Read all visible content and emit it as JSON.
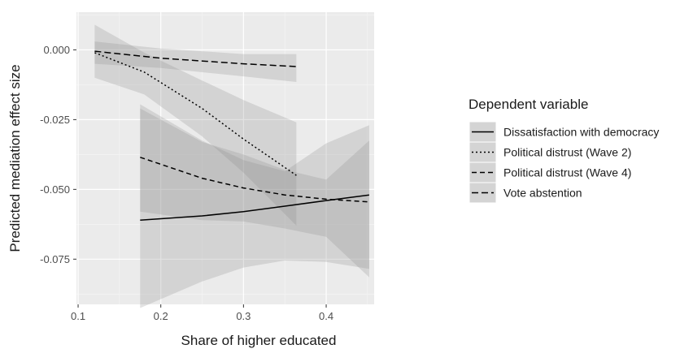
{
  "chart_data": {
    "type": "line",
    "title": "",
    "xlabel": "Share of higher educated",
    "ylabel": "Predicted mediation effect size",
    "xlim": [
      0.098,
      0.458
    ],
    "ylim": [
      -0.0912,
      0.0135
    ],
    "xticks": [
      0.1,
      0.2,
      0.3,
      0.4
    ],
    "xtick_labels": [
      "0.1",
      "0.2",
      "0.3",
      "0.4"
    ],
    "yticks": [
      0.0,
      -0.025,
      -0.05,
      -0.075
    ],
    "ytick_labels": [
      "0.000",
      "-0.025",
      "-0.050",
      "-0.075"
    ],
    "grid": true,
    "background": "#ebebeb",
    "legend": {
      "title": "Dependent variable",
      "placement": "right"
    },
    "series": [
      {
        "name": "Dissatisfaction with democracy",
        "dash": "solid",
        "x": [
          0.175,
          0.25,
          0.3,
          0.35,
          0.4,
          0.452
        ],
        "y": [
          -0.061,
          -0.0595,
          -0.058,
          -0.056,
          -0.054,
          -0.052
        ],
        "lower": [
          -0.0925,
          -0.083,
          -0.078,
          -0.0755,
          -0.076,
          -0.0785
        ],
        "upper": [
          -0.0195,
          -0.0325,
          -0.0395,
          -0.0435,
          -0.0335,
          -0.027
        ]
      },
      {
        "name": "Political distrust (Wave 2)",
        "dash": "dotted",
        "x": [
          0.12,
          0.18,
          0.25,
          0.3,
          0.364
        ],
        "y": [
          -0.001,
          -0.008,
          -0.021,
          -0.032,
          -0.045
        ],
        "lower": [
          -0.01,
          -0.016,
          -0.031,
          -0.044,
          -0.063
        ],
        "upper": [
          0.009,
          -0.001,
          -0.011,
          -0.018,
          -0.026
        ]
      },
      {
        "name": "Political distrust (Wave 4)",
        "dash": "dashed",
        "x": [
          0.175,
          0.25,
          0.3,
          0.35,
          0.4,
          0.452
        ],
        "y": [
          -0.0385,
          -0.046,
          -0.0495,
          -0.052,
          -0.0535,
          -0.0545
        ],
        "lower": [
          -0.058,
          -0.061,
          -0.0615,
          -0.064,
          -0.067,
          -0.0815
        ],
        "upper": [
          -0.021,
          -0.033,
          -0.0375,
          -0.043,
          -0.0465,
          -0.0325
        ]
      },
      {
        "name": "Vote abstention",
        "dash": "longdash",
        "x": [
          0.12,
          0.2,
          0.3,
          0.364
        ],
        "y": [
          -0.0005,
          -0.003,
          -0.005,
          -0.006
        ],
        "lower": [
          -0.005,
          -0.0065,
          -0.0095,
          -0.0115
        ],
        "upper": [
          0.003,
          0.0005,
          -0.0015,
          -0.0015
        ]
      }
    ]
  }
}
